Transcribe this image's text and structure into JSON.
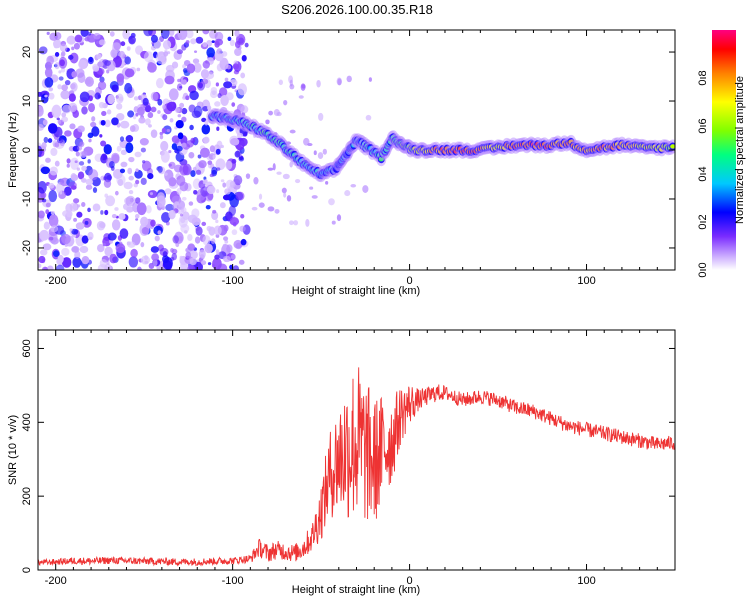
{
  "title": "S206.2026.100.00.35.R18",
  "chart_data": [
    {
      "type": "heatmap",
      "xlabel": "Height of straight line (km)",
      "ylabel": "Frequency (Hz)",
      "xlim": [
        -210,
        150
      ],
      "ylim": [
        -24.5,
        24.5
      ],
      "xticks": [
        -200,
        -100,
        0,
        100
      ],
      "yticks": [
        -20,
        -10,
        0,
        10,
        20
      ],
      "colorbar": {
        "label": "Normalized spectral amplitude",
        "range": [
          0,
          1
        ],
        "ticks": [
          "0.0",
          "0.2",
          "0.4",
          "0.6",
          "0.8"
        ],
        "tick_values": [
          0.0,
          0.2,
          0.4,
          0.6,
          0.8
        ],
        "colors": [
          "#ffffff",
          "#b06cff",
          "#6a00ff",
          "#0000ff",
          "#00c8ff",
          "#00ff80",
          "#b0ff00",
          "#ffff00",
          "#ff8000",
          "#ff0000",
          "#ff0080"
        ]
      },
      "noise_region": {
        "x": [
          -210,
          -92
        ],
        "y": [
          -24.5,
          24.5
        ],
        "mean_amplitude": 0.12
      },
      "trace": [
        {
          "x": -112,
          "y": 7.0,
          "amp": 0.3
        },
        {
          "x": -105,
          "y": 6.5,
          "amp": 0.32
        },
        {
          "x": -98,
          "y": 6.0,
          "amp": 0.35
        },
        {
          "x": -90,
          "y": 5.0,
          "amp": 0.4
        },
        {
          "x": -82,
          "y": 3.5,
          "amp": 0.45
        },
        {
          "x": -74,
          "y": 1.5,
          "amp": 0.45
        },
        {
          "x": -66,
          "y": -1.0,
          "amp": 0.4
        },
        {
          "x": -58,
          "y": -3.5,
          "amp": 0.4
        },
        {
          "x": -50,
          "y": -5.0,
          "amp": 0.35
        },
        {
          "x": -42,
          "y": -4.0,
          "amp": 0.3
        },
        {
          "x": -36,
          "y": -1.0,
          "amp": 0.3
        },
        {
          "x": -30,
          "y": 2.0,
          "amp": 0.35
        },
        {
          "x": -24,
          "y": 0.5,
          "amp": 0.4
        },
        {
          "x": -16,
          "y": -1.5,
          "amp": 0.45
        },
        {
          "x": -10,
          "y": 2.5,
          "amp": 0.45
        },
        {
          "x": -4,
          "y": 1.0,
          "amp": 0.55
        },
        {
          "x": 2,
          "y": 0.0,
          "amp": 0.6
        },
        {
          "x": 10,
          "y": 0.0,
          "amp": 0.75
        },
        {
          "x": 20,
          "y": 0.0,
          "amp": 0.85
        },
        {
          "x": 30,
          "y": 0.0,
          "amp": 0.9
        },
        {
          "x": 40,
          "y": 0.0,
          "amp": 0.8
        },
        {
          "x": 50,
          "y": 0.5,
          "amp": 0.7
        },
        {
          "x": 60,
          "y": 1.0,
          "amp": 0.85
        },
        {
          "x": 70,
          "y": 1.0,
          "amp": 0.9
        },
        {
          "x": 80,
          "y": 1.0,
          "amp": 0.85
        },
        {
          "x": 90,
          "y": 1.5,
          "amp": 0.8
        },
        {
          "x": 100,
          "y": 0.0,
          "amp": 0.75
        },
        {
          "x": 110,
          "y": 0.5,
          "amp": 0.8
        },
        {
          "x": 120,
          "y": 1.0,
          "amp": 0.75
        },
        {
          "x": 130,
          "y": 0.5,
          "amp": 0.7
        },
        {
          "x": 140,
          "y": 0.5,
          "amp": 0.65
        },
        {
          "x": 150,
          "y": 0.5,
          "amp": 0.6
        }
      ]
    },
    {
      "type": "line",
      "xlabel": "Height of straight line (km)",
      "ylabel": "SNR (10 * v/v)",
      "xlim": [
        -210,
        150
      ],
      "ylim": [
        0,
        650
      ],
      "xticks": [
        -200,
        -100,
        0,
        100
      ],
      "yticks": [
        0,
        200,
        400,
        600
      ],
      "color": "#ee3333",
      "series": [
        {
          "name": "SNR",
          "x": [
            -210,
            -200,
            -190,
            -180,
            -170,
            -160,
            -150,
            -140,
            -130,
            -120,
            -110,
            -100,
            -95,
            -90,
            -85,
            -80,
            -75,
            -70,
            -65,
            -60,
            -55,
            -50,
            -45,
            -40,
            -35,
            -30,
            -25,
            -20,
            -15,
            -10,
            -5,
            0,
            5,
            10,
            15,
            20,
            25,
            30,
            40,
            50,
            60,
            70,
            80,
            90,
            100,
            110,
            120,
            130,
            140,
            150
          ],
          "y": [
            20,
            22,
            25,
            24,
            26,
            25,
            24,
            23,
            22,
            22,
            24,
            25,
            28,
            30,
            60,
            45,
            55,
            50,
            45,
            60,
            90,
            160,
            260,
            300,
            330,
            350,
            320,
            290,
            330,
            350,
            420,
            450,
            460,
            470,
            480,
            480,
            470,
            460,
            470,
            460,
            440,
            430,
            410,
            390,
            380,
            370,
            360,
            350,
            340,
            345
          ],
          "noise": [
            8,
            8,
            10,
            10,
            10,
            10,
            10,
            10,
            10,
            10,
            10,
            10,
            10,
            12,
            25,
            25,
            25,
            25,
            25,
            30,
            40,
            80,
            120,
            160,
            200,
            230,
            200,
            180,
            150,
            120,
            80,
            60,
            30,
            25,
            25,
            20,
            20,
            20,
            20,
            20,
            20,
            20,
            20,
            20,
            20,
            20,
            20,
            20,
            20,
            20
          ]
        }
      ]
    }
  ]
}
